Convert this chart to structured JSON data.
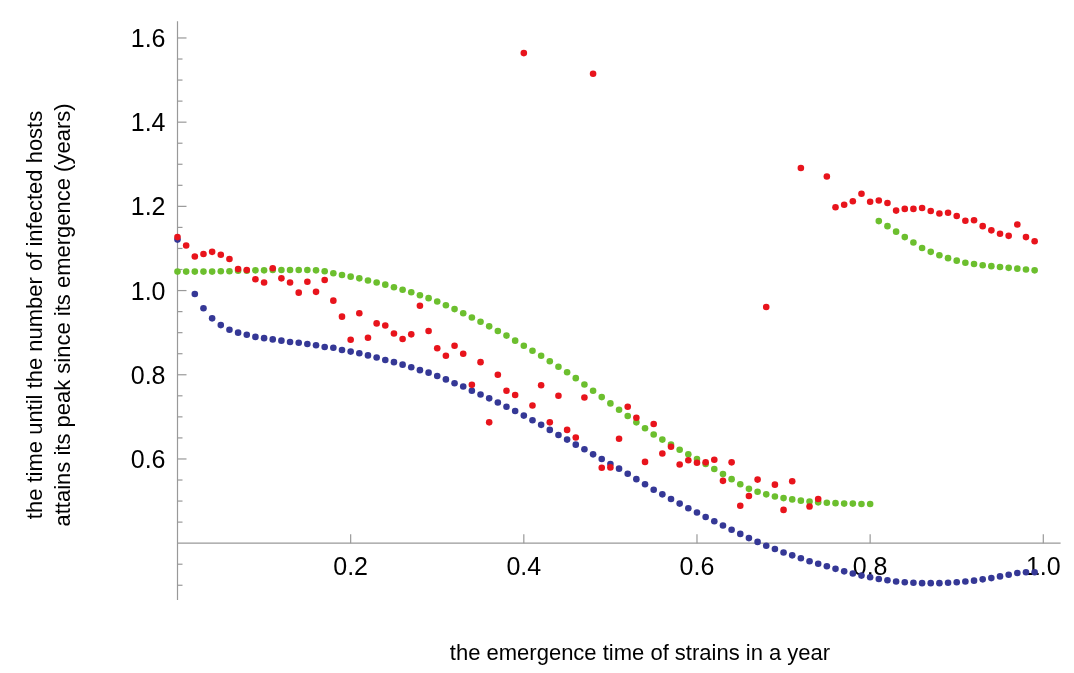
{
  "chart_data": {
    "type": "scatter",
    "xlabel": "the emergence time of strains in a year",
    "ylabel": "the time until the number of infected hosts\nattains its peak since its emergence (years)",
    "marker": "circle",
    "xlim": [
      0,
      1.02
    ],
    "ylim": [
      0.265,
      1.64
    ],
    "xticks": [
      0.2,
      0.4,
      0.6,
      0.8,
      {
        "value": 1,
        "label": "1.0"
      }
    ],
    "yticks": [
      {
        "value": 0.3,
        "label": null
      },
      {
        "value": 0.35,
        "label": null
      },
      {
        "value": 0.45,
        "label": null
      },
      {
        "value": 0.5,
        "label": null
      },
      {
        "value": 0.55,
        "label": null
      },
      0.6,
      {
        "value": 0.65,
        "label": null
      },
      {
        "value": 0.7,
        "label": null
      },
      {
        "value": 0.75,
        "label": null
      },
      0.8,
      {
        "value": 0.85,
        "label": null
      },
      {
        "value": 0.9,
        "label": null
      },
      {
        "value": 0.95,
        "label": null
      },
      {
        "value": 1,
        "label": "1.0"
      },
      {
        "value": 1.05,
        "label": null
      },
      {
        "value": 1.1,
        "label": null
      },
      {
        "value": 1.15,
        "label": null
      },
      1.2,
      {
        "value": 1.25,
        "label": null
      },
      {
        "value": 1.3,
        "label": null
      },
      {
        "value": 1.35,
        "label": null
      },
      1.4,
      {
        "value": 1.45,
        "label": null
      },
      {
        "value": 1.5,
        "label": null
      },
      {
        "value": 1.55,
        "label": null
      },
      1.6
    ],
    "series": [
      {
        "color": "#6cbf2e",
        "x": [
          0,
          0.01,
          0.02,
          0.03,
          0.04,
          0.05,
          0.06,
          0.07,
          0.08,
          0.09,
          0.1,
          0.11,
          0.12,
          0.13,
          0.14,
          0.15,
          0.16,
          0.17,
          0.18,
          0.19,
          0.2,
          0.21,
          0.22,
          0.23,
          0.24,
          0.25,
          0.26,
          0.27,
          0.28,
          0.29,
          0.3,
          0.31,
          0.32,
          0.33,
          0.34,
          0.35,
          0.36,
          0.37,
          0.38,
          0.39,
          0.4,
          0.41,
          0.42,
          0.43,
          0.44,
          0.45,
          0.46,
          0.47,
          0.48,
          0.49,
          0.5,
          0.51,
          0.52,
          0.53,
          0.54,
          0.55,
          0.56,
          0.57,
          0.58,
          0.59,
          0.6,
          0.61,
          0.62,
          0.63,
          0.64,
          0.65,
          0.66,
          0.67,
          0.68,
          0.69,
          0.7,
          0.71,
          0.72,
          0.73,
          0.74,
          0.75,
          0.76,
          0.77,
          0.78,
          0.79,
          0.8,
          0.81,
          0.82,
          0.83,
          0.84,
          0.85,
          0.86,
          0.87,
          0.88,
          0.89,
          0.9,
          0.91,
          0.92,
          0.93,
          0.94,
          0.95,
          0.96,
          0.97,
          0.98,
          0.99
        ],
        "values": [
          1.045,
          1.045,
          1.045,
          1.045,
          1.045,
          1.046,
          1.046,
          1.047,
          1.047,
          1.048,
          1.048,
          1.049,
          1.049,
          1.049,
          1.049,
          1.049,
          1.048,
          1.046,
          1.041,
          1.037,
          1.033,
          1.029,
          1.024,
          1.019,
          1.014,
          1.008,
          1.002,
          0.996,
          0.989,
          0.982,
          0.974,
          0.965,
          0.956,
          0.946,
          0.936,
          0.926,
          0.915,
          0.904,
          0.893,
          0.881,
          0.869,
          0.857,
          0.845,
          0.832,
          0.819,
          0.806,
          0.792,
          0.777,
          0.762,
          0.747,
          0.732,
          0.717,
          0.702,
          0.687,
          0.673,
          0.658,
          0.646,
          0.634,
          0.622,
          0.611,
          0.6,
          0.588,
          0.576,
          0.564,
          0.552,
          0.54,
          0.529,
          0.522,
          0.516,
          0.511,
          0.507,
          0.504,
          0.501,
          0.499,
          0.497,
          0.496,
          0.495,
          0.494,
          0.494,
          0.493,
          0.493,
          1.165,
          1.153,
          1.14,
          1.127,
          1.114,
          1.101,
          1.092,
          1.084,
          1.077,
          1.071,
          1.066,
          1.063,
          1.06,
          1.058,
          1.056,
          1.054,
          1.052,
          1.05,
          1.048
        ]
      },
      {
        "color": "#353896",
        "x": [
          0,
          0.02,
          0.03,
          0.04,
          0.05,
          0.06,
          0.07,
          0.08,
          0.09,
          0.1,
          0.11,
          0.12,
          0.13,
          0.14,
          0.15,
          0.16,
          0.17,
          0.18,
          0.19,
          0.2,
          0.21,
          0.22,
          0.23,
          0.24,
          0.25,
          0.26,
          0.27,
          0.28,
          0.29,
          0.3,
          0.31,
          0.32,
          0.33,
          0.34,
          0.35,
          0.36,
          0.37,
          0.38,
          0.39,
          0.4,
          0.41,
          0.42,
          0.43,
          0.44,
          0.45,
          0.46,
          0.47,
          0.48,
          0.49,
          0.5,
          0.51,
          0.52,
          0.53,
          0.54,
          0.55,
          0.56,
          0.57,
          0.58,
          0.59,
          0.6,
          0.61,
          0.62,
          0.63,
          0.64,
          0.65,
          0.66,
          0.67,
          0.68,
          0.69,
          0.7,
          0.71,
          0.72,
          0.73,
          0.74,
          0.75,
          0.76,
          0.77,
          0.78,
          0.79,
          0.8,
          0.81,
          0.82,
          0.83,
          0.84,
          0.85,
          0.86,
          0.87,
          0.88,
          0.89,
          0.9,
          0.91,
          0.92,
          0.93,
          0.94,
          0.95,
          0.96,
          0.97,
          0.98,
          0.99
        ],
        "values": [
          1.121,
          0.992,
          0.958,
          0.934,
          0.918,
          0.907,
          0.9,
          0.895,
          0.89,
          0.887,
          0.884,
          0.881,
          0.878,
          0.876,
          0.873,
          0.87,
          0.866,
          0.864,
          0.859,
          0.855,
          0.851,
          0.846,
          0.841,
          0.835,
          0.83,
          0.824,
          0.818,
          0.811,
          0.805,
          0.797,
          0.789,
          0.78,
          0.772,
          0.762,
          0.753,
          0.744,
          0.734,
          0.724,
          0.714,
          0.703,
          0.692,
          0.681,
          0.669,
          0.657,
          0.646,
          0.634,
          0.623,
          0.611,
          0.6,
          0.588,
          0.577,
          0.565,
          0.552,
          0.54,
          0.527,
          0.516,
          0.505,
          0.494,
          0.483,
          0.473,
          0.462,
          0.452,
          0.442,
          0.432,
          0.422,
          0.412,
          0.403,
          0.394,
          0.386,
          0.378,
          0.371,
          0.364,
          0.357,
          0.351,
          0.345,
          0.339,
          0.333,
          0.328,
          0.323,
          0.319,
          0.315,
          0.312,
          0.309,
          0.307,
          0.306,
          0.305,
          0.305,
          0.305,
          0.306,
          0.307,
          0.309,
          0.311,
          0.314,
          0.317,
          0.321,
          0.325,
          0.329,
          0.331,
          0.331
        ]
      },
      {
        "color": "#e8141c",
        "x": [
          0,
          0.01,
          0.02,
          0.03,
          0.04,
          0.05,
          0.06,
          0.07,
          0.08,
          0.09,
          0.1,
          0.11,
          0.12,
          0.13,
          0.14,
          0.15,
          0.16,
          0.17,
          0.18,
          0.19,
          0.2,
          0.21,
          0.22,
          0.23,
          0.24,
          0.25,
          0.26,
          0.27,
          0.28,
          0.29,
          0.3,
          0.31,
          0.32,
          0.33,
          0.34,
          0.35,
          0.36,
          0.37,
          0.38,
          0.39,
          0.4,
          0.41,
          0.42,
          0.43,
          0.44,
          0.45,
          0.46,
          0.47,
          0.48,
          0.49,
          0.5,
          0.51,
          0.52,
          0.53,
          0.54,
          0.55,
          0.56,
          0.57,
          0.58,
          0.59,
          0.6,
          0.61,
          0.62,
          0.63,
          0.64,
          0.65,
          0.66,
          0.67,
          0.68,
          0.69,
          0.7,
          0.71,
          0.72,
          0.73,
          0.74,
          0.75,
          0.76,
          0.77,
          0.78,
          0.79,
          0.8,
          0.81,
          0.82,
          0.83,
          0.84,
          0.85,
          0.86,
          0.87,
          0.88,
          0.89,
          0.9,
          0.91,
          0.92,
          0.93,
          0.94,
          0.95,
          0.96,
          0.97,
          0.98,
          0.99
        ],
        "values": [
          1.127,
          1.107,
          1.081,
          1.087,
          1.092,
          1.085,
          1.075,
          1.051,
          1.049,
          1.027,
          1.019,
          1.053,
          1.029,
          1.019,
          0.995,
          1.021,
          0.997,
          1.025,
          0.976,
          0.938,
          0.883,
          0.946,
          0.888,
          0.922,
          0.917,
          0.898,
          0.885,
          0.896,
          0.964,
          0.904,
          0.863,
          0.845,
          0.869,
          0.85,
          0.776,
          0.83,
          0.687,
          0.8,
          0.762,
          0.752,
          1.564,
          0.727,
          0.775,
          0.687,
          0.75,
          0.669,
          0.651,
          0.746,
          1.515,
          0.579,
          0.58,
          0.648,
          0.724,
          0.698,
          0.593,
          0.683,
          0.613,
          0.629,
          0.587,
          0.597,
          0.591,
          0.592,
          0.598,
          0.548,
          0.592,
          0.489,
          0.512,
          0.551,
          0.961,
          0.539,
          0.479,
          0.547,
          1.291,
          0.487,
          0.505,
          1.271,
          1.198,
          1.204,
          1.212,
          1.23,
          1.211,
          1.214,
          1.208,
          1.19,
          1.194,
          1.194,
          1.196,
          1.189,
          1.183,
          1.185,
          1.177,
          1.166,
          1.167,
          1.153,
          1.143,
          1.135,
          1.13,
          1.157,
          1.127,
          1.117
        ]
      }
    ]
  }
}
